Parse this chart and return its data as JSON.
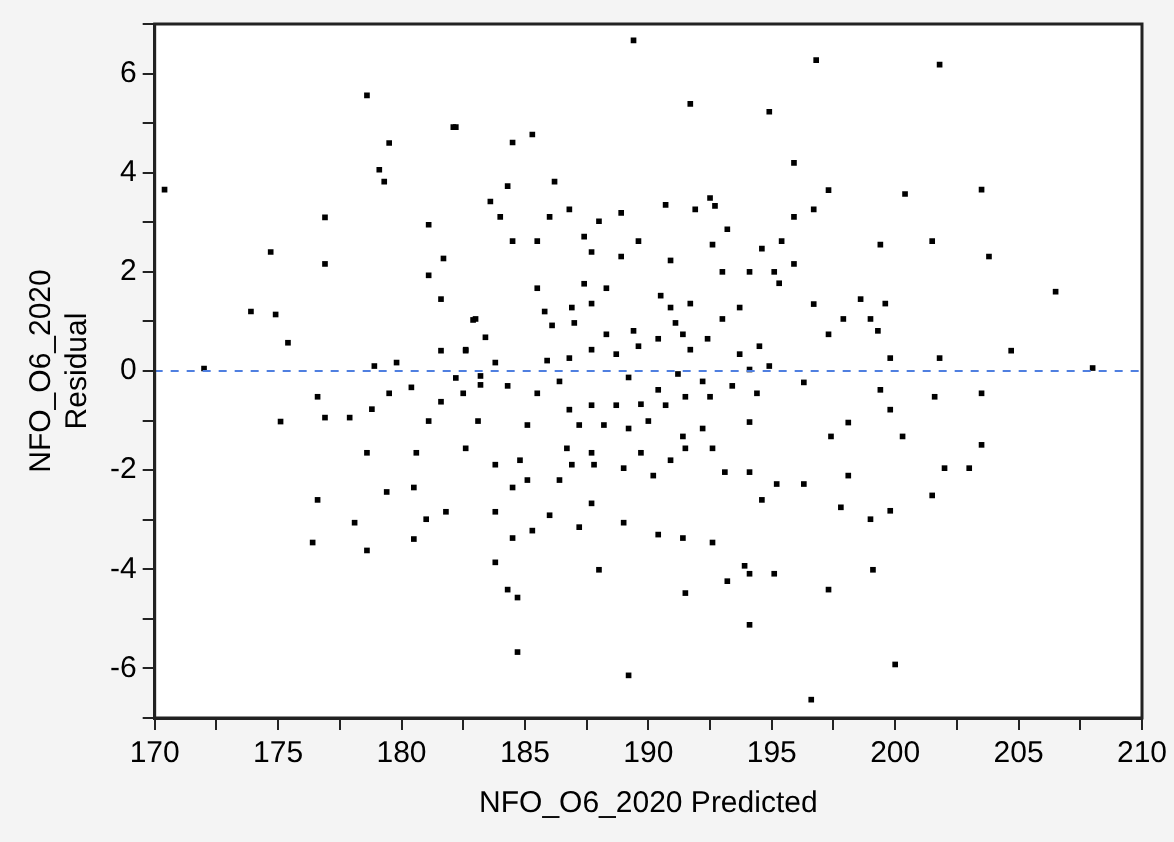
{
  "chart_data": {
    "type": "scatter",
    "xlabel": "NFO_O6_2020 Predicted",
    "ylabel": "NFO_O6_2020 Residual",
    "marker": "square",
    "grid": false,
    "legend": false,
    "xlim": [
      170,
      210
    ],
    "ylim": [
      -7,
      7
    ],
    "xticks": [
      170,
      {
        "value": 172.5,
        "label": null
      },
      175,
      {
        "value": 177.5,
        "label": null
      },
      180,
      {
        "value": 182.5,
        "label": null
      },
      185,
      {
        "value": 187.5,
        "label": null
      },
      190,
      {
        "value": 192.5,
        "label": null
      },
      195,
      {
        "value": 197.5,
        "label": null
      },
      200,
      {
        "value": 202.5,
        "label": null
      },
      205,
      {
        "value": 207.5,
        "label": null
      },
      210
    ],
    "yticks": [
      {
        "value": -7,
        "label": null
      },
      -6,
      {
        "value": -5,
        "label": null
      },
      -4,
      {
        "value": -3,
        "label": null
      },
      -2,
      {
        "value": -1,
        "label": null
      },
      0,
      {
        "value": 1,
        "label": null
      },
      2,
      {
        "value": 3,
        "label": null
      },
      4,
      {
        "value": 5,
        "label": null
      },
      6,
      {
        "value": 7,
        "label": null
      }
    ],
    "ref_lines": [
      {
        "axis": "y",
        "value": 0,
        "color": "#4f7fe0",
        "line_style": "dashed"
      }
    ],
    "series": [
      {
        "color": "#000000",
        "x": [
          170.4,
          172.0,
          173.9,
          174.7,
          174.9,
          175.4,
          176.9,
          176.9,
          178.6,
          179.1,
          179.3,
          179.5,
          178.9,
          179.8,
          181.1,
          181.1,
          181.7,
          181.6,
          181.6,
          182.1,
          182.6,
          182.9,
          189.4,
          196.8,
          191.7,
          194.9,
          182.2,
          184.5,
          185.3,
          195.9,
          184.3,
          186.2,
          183.6,
          184.0,
          186.0,
          186.8,
          188.9,
          188.0,
          190.7,
          191.9,
          192.5,
          192.7,
          193.2,
          195.9,
          196.7,
          197.3,
          184.5,
          185.5,
          187.4,
          187.7,
          188.9,
          189.6,
          190.9,
          192.6,
          194.6,
          195.4,
          195.9,
          185.5,
          187.4,
          188.3,
          190.5,
          190.9,
          191.7,
          193.0,
          194.1,
          195.1,
          195.3,
          193.7,
          196.7,
          185.8,
          186.1,
          186.9,
          187.7,
          187.0,
          183.0,
          183.4,
          182.6,
          183.8,
          185.9,
          186.8,
          187.7,
          188.3,
          188.7,
          189.4,
          189.6,
          190.4,
          191.1,
          191.4,
          191.7,
          192.4,
          193.0,
          193.7,
          194.5,
          194.9,
          197.3,
          201.8,
          200.4,
          203.5,
          199.4,
          201.5,
          203.8,
          206.5,
          198.6,
          199.6,
          197.9,
          199.0,
          199.3,
          199.8,
          201.8,
          204.7,
          208.0,
          175.1,
          176.6,
          176.9,
          177.9,
          178.8,
          179.5,
          180.4,
          181.1,
          181.6,
          182.2,
          182.5,
          178.6,
          180.6,
          182.6,
          176.6,
          179.4,
          180.5,
          178.1,
          181.0,
          181.8,
          176.4,
          178.6,
          180.5,
          183.2,
          183.2,
          184.3,
          185.5,
          186.4,
          189.2,
          191.2,
          192.2,
          194.1,
          196.3,
          190.4,
          191.5,
          192.5,
          193.4,
          194.4,
          186.8,
          187.7,
          188.7,
          189.7,
          190.7,
          183.1,
          185.1,
          187.2,
          188.2,
          189.2,
          190.0,
          191.4,
          192.2,
          194.1,
          186.7,
          187.7,
          189.7,
          191.5,
          192.6,
          183.8,
          184.8,
          186.9,
          187.8,
          189.0,
          190.9,
          184.5,
          185.1,
          186.4,
          190.2,
          193.1,
          194.1,
          195.2,
          196.3,
          194.6,
          183.8,
          186.0,
          187.7,
          185.3,
          184.5,
          187.2,
          189.0,
          190.4,
          191.4,
          192.6,
          183.8,
          188.0,
          193.9,
          194.1,
          195.1,
          193.2,
          184.3,
          184.7,
          191.5,
          197.3,
          194.1,
          184.7,
          189.2,
          196.6,
          199.4,
          201.6,
          203.5,
          199.8,
          198.1,
          197.4,
          200.3,
          203.5,
          202.0,
          203.0,
          198.1,
          201.5,
          197.8,
          199.0,
          199.8,
          199.1,
          200.0
        ],
        "values": [
          3.66,
          0.05,
          1.2,
          2.4,
          1.14,
          0.57,
          3.1,
          2.16,
          5.56,
          4.06,
          3.82,
          4.6,
          0.1,
          0.17,
          2.95,
          1.93,
          2.27,
          1.45,
          0.41,
          4.92,
          0.41,
          1.03,
          6.67,
          6.27,
          5.39,
          5.23,
          4.92,
          4.61,
          4.77,
          4.2,
          3.73,
          3.82,
          3.42,
          3.11,
          3.11,
          3.26,
          3.19,
          3.02,
          3.35,
          3.26,
          3.49,
          3.33,
          2.86,
          3.11,
          3.26,
          3.65,
          2.62,
          2.62,
          2.71,
          2.4,
          2.31,
          2.62,
          2.23,
          2.55,
          2.47,
          2.62,
          2.16,
          1.67,
          1.76,
          1.67,
          1.52,
          1.28,
          1.36,
          2.0,
          2.0,
          2.0,
          1.77,
          1.28,
          1.35,
          1.2,
          0.92,
          1.28,
          1.36,
          0.97,
          1.05,
          0.68,
          0.43,
          0.17,
          0.21,
          0.26,
          0.43,
          0.74,
          0.34,
          0.81,
          0.5,
          0.65,
          0.97,
          0.74,
          0.43,
          0.65,
          1.05,
          0.34,
          0.5,
          0.1,
          0.74,
          6.18,
          3.57,
          3.66,
          2.55,
          2.62,
          2.31,
          1.6,
          1.45,
          1.36,
          1.05,
          1.05,
          0.81,
          0.26,
          0.26,
          0.41,
          0.06,
          -1.02,
          -0.52,
          -0.94,
          -0.94,
          -0.77,
          -0.45,
          -0.33,
          -1.01,
          -0.62,
          -0.14,
          -0.45,
          -1.65,
          -1.65,
          -1.56,
          -2.6,
          -2.44,
          -2.35,
          -3.06,
          -2.99,
          -2.84,
          -3.46,
          -3.62,
          -3.39,
          -0.1,
          -0.28,
          -0.3,
          -0.45,
          -0.21,
          -0.13,
          -0.06,
          -0.21,
          0.03,
          -0.23,
          -0.38,
          -0.52,
          -0.52,
          -0.3,
          -0.45,
          -0.78,
          -0.69,
          -0.69,
          -0.67,
          -0.69,
          -1.01,
          -1.09,
          -1.09,
          -1.09,
          -1.16,
          -1.01,
          -1.32,
          -1.16,
          -1.03,
          -1.56,
          -1.65,
          -1.65,
          -1.56,
          -1.56,
          -1.89,
          -1.8,
          -1.89,
          -1.89,
          -1.96,
          -1.8,
          -2.35,
          -2.2,
          -2.2,
          -2.11,
          -2.04,
          -2.04,
          -2.28,
          -2.28,
          -2.6,
          -2.84,
          -2.91,
          -2.67,
          -3.22,
          -3.37,
          -3.15,
          -3.06,
          -3.3,
          -3.37,
          -3.46,
          -3.86,
          -4.01,
          -3.93,
          -4.09,
          -4.09,
          -4.24,
          -4.41,
          -4.57,
          -4.48,
          -4.41,
          -5.12,
          -5.67,
          -6.14,
          -6.63,
          -0.38,
          -0.52,
          -0.45,
          -0.78,
          -1.04,
          -1.32,
          -1.32,
          -1.49,
          -1.96,
          -1.96,
          -2.11,
          -2.51,
          -2.75,
          -2.99,
          -2.82,
          -4.01,
          -5.92
        ]
      }
    ]
  }
}
